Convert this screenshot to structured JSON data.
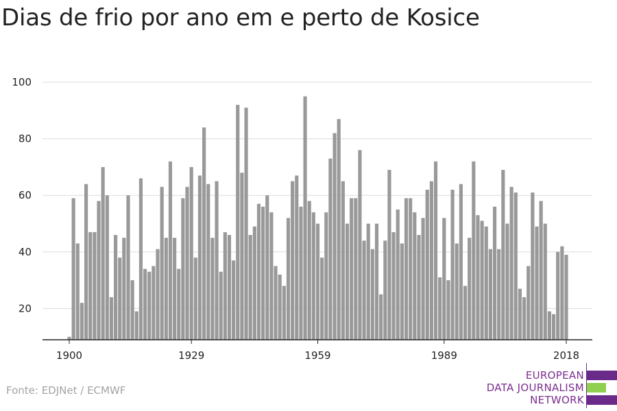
{
  "title": "Dias de frio por ano em e perto de Kosice",
  "source": "Fonte: EDJNet / ECMWF",
  "logo": {
    "lines": [
      "EUROPEAN",
      "DATA JOURNALISM",
      "NETWORK"
    ],
    "colors": [
      "#6a2a8a",
      "#8fd14f",
      "#6a2a8a"
    ]
  },
  "chart_data": {
    "type": "bar",
    "bar_color": "#999999",
    "ylim": [
      9,
      100
    ],
    "yticks": [
      20,
      40,
      60,
      80,
      100
    ],
    "xticks": [
      1900,
      1929,
      1959,
      1989,
      2018
    ],
    "grid": true,
    "x": [
      1900,
      1901,
      1902,
      1903,
      1904,
      1905,
      1906,
      1907,
      1908,
      1909,
      1910,
      1911,
      1912,
      1913,
      1914,
      1915,
      1916,
      1917,
      1918,
      1919,
      1920,
      1921,
      1922,
      1923,
      1924,
      1925,
      1926,
      1927,
      1928,
      1929,
      1930,
      1931,
      1932,
      1933,
      1934,
      1935,
      1936,
      1937,
      1938,
      1939,
      1940,
      1941,
      1942,
      1943,
      1944,
      1945,
      1946,
      1947,
      1948,
      1949,
      1950,
      1951,
      1952,
      1953,
      1954,
      1955,
      1956,
      1957,
      1958,
      1959,
      1960,
      1961,
      1962,
      1963,
      1964,
      1965,
      1966,
      1967,
      1968,
      1969,
      1970,
      1971,
      1972,
      1973,
      1974,
      1975,
      1976,
      1977,
      1978,
      1979,
      1980,
      1981,
      1982,
      1983,
      1984,
      1985,
      1986,
      1987,
      1988,
      1989,
      1990,
      1991,
      1992,
      1993,
      1994,
      1995,
      1996,
      1997,
      1998,
      1999,
      2000,
      2001,
      2002,
      2003,
      2004,
      2005,
      2006,
      2007,
      2008,
      2009,
      2010,
      2011,
      2012,
      2013,
      2014,
      2015,
      2016,
      2017,
      2018
    ],
    "values": [
      10,
      59,
      43,
      22,
      64,
      47,
      47,
      58,
      70,
      60,
      24,
      46,
      38,
      45,
      60,
      30,
      19,
      66,
      34,
      33,
      35,
      41,
      63,
      45,
      72,
      45,
      34,
      59,
      63,
      70,
      38,
      67,
      84,
      64,
      45,
      65,
      33,
      47,
      46,
      37,
      92,
      68,
      91,
      46,
      49,
      57,
      56,
      60,
      54,
      35,
      32,
      28,
      52,
      65,
      67,
      56,
      95,
      58,
      54,
      50,
      38,
      54,
      73,
      82,
      87,
      65,
      50,
      59,
      59,
      76,
      44,
      50,
      41,
      50,
      25,
      44,
      69,
      47,
      55,
      43,
      59,
      59,
      54,
      46,
      52,
      62,
      65,
      72,
      31,
      52,
      30,
      62,
      43,
      64,
      28,
      45,
      72,
      53,
      51,
      49,
      41,
      56,
      41,
      69,
      50,
      63,
      61,
      27,
      24,
      35,
      61,
      49,
      58,
      50,
      19,
      18,
      40,
      42,
      39
    ]
  }
}
